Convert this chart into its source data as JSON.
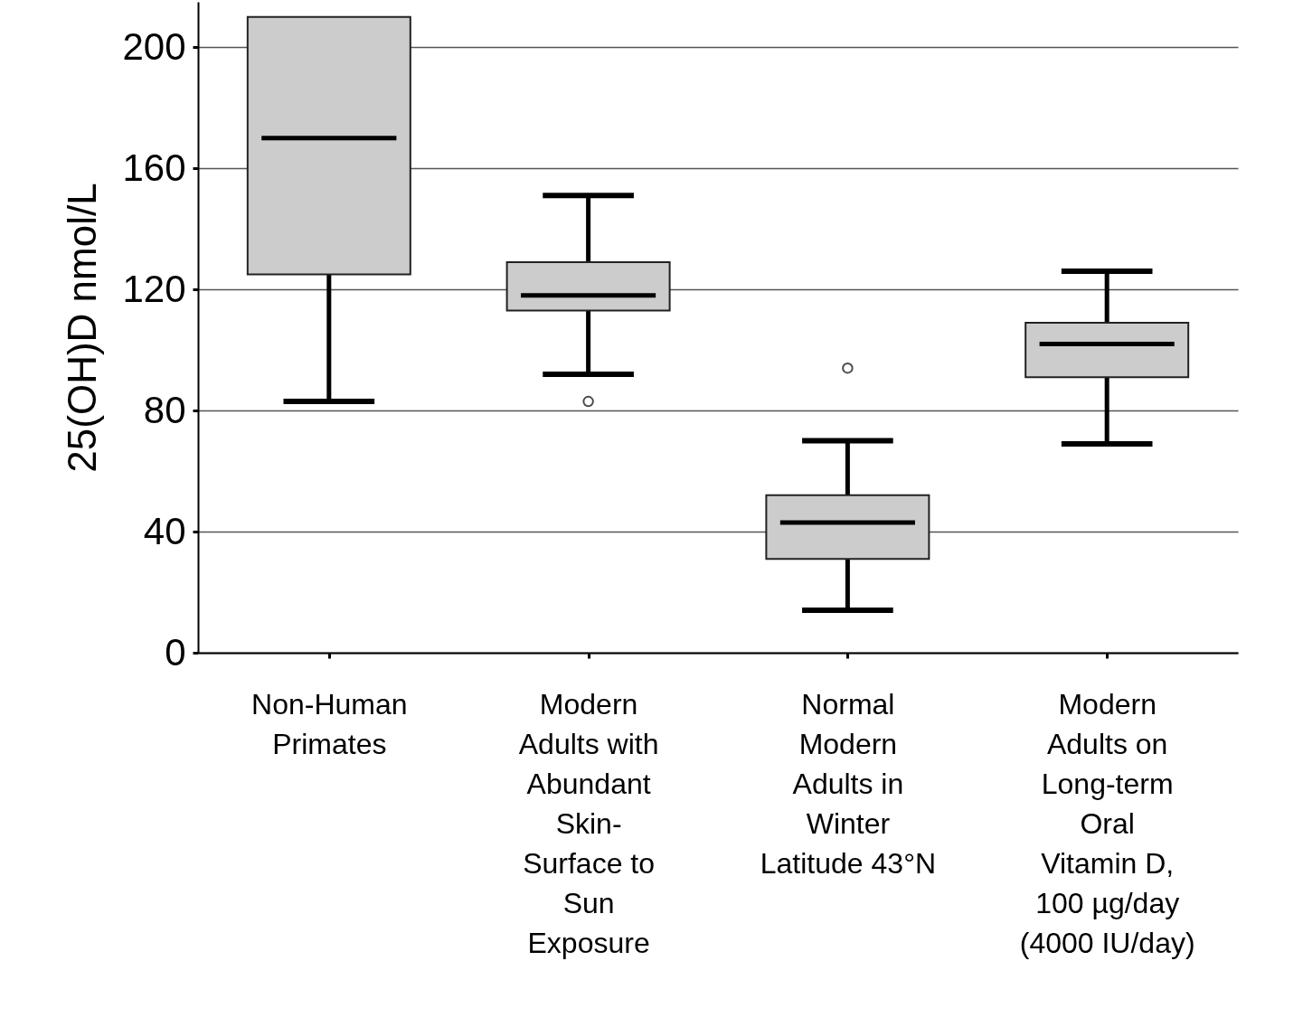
{
  "chart_data": {
    "type": "box",
    "ylabel": "25(OH)D  nmol/L",
    "categories": [
      "Non-Human\nPrimates",
      "Modern\nAdults with\nAbundant\nSkin-\nSurface to\nSun\nExposure",
      "Normal\nModern\nAdults in\nWinter\n\nLatitude 43°N",
      "Modern\nAdults on\nLong-term\nOral\nVitamin D,\n100 µg/day\n(4000 IU/day)"
    ],
    "boxes": [
      {
        "low": 83,
        "q1": 125,
        "median": 170,
        "q3": 210,
        "high": null
      },
      {
        "low": 92,
        "q1": 113,
        "median": 118,
        "q3": 129,
        "high": 151,
        "outliers": [
          83
        ]
      },
      {
        "low": 14,
        "q1": 31,
        "median": 43,
        "q3": 52,
        "high": 70,
        "outliers": [
          94
        ]
      },
      {
        "low": 69,
        "q1": 91,
        "median": 102,
        "q3": 109,
        "high": 126
      }
    ],
    "color": "#cccccc",
    "ylim": [
      0,
      215
    ],
    "yticks": [
      0,
      40,
      80,
      120,
      160,
      200
    ],
    "grid": "y"
  }
}
